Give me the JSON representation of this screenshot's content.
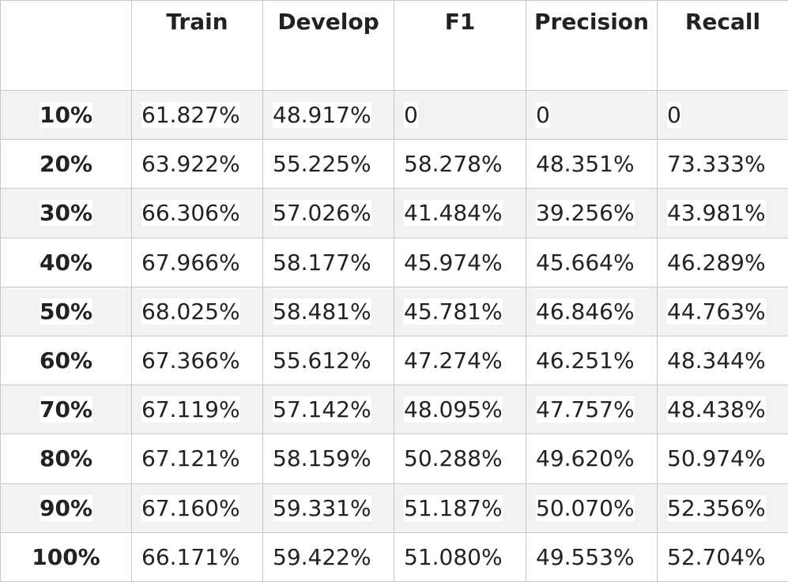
{
  "table": {
    "headers": [
      "",
      "Train",
      "Develop",
      "F1",
      "Precision",
      "Recall"
    ],
    "rows": [
      {
        "label": "10%",
        "values": [
          "61.827%",
          "48.917%",
          "0",
          "0",
          "0"
        ]
      },
      {
        "label": "20%",
        "values": [
          "63.922%",
          "55.225%",
          "58.278%",
          "48.351%",
          "73.333%"
        ]
      },
      {
        "label": "30%",
        "values": [
          "66.306%",
          "57.026%",
          "41.484%",
          "39.256%",
          "43.981%"
        ]
      },
      {
        "label": "40%",
        "values": [
          "67.966%",
          "58.177%",
          "45.974%",
          "45.664%",
          "46.289%"
        ]
      },
      {
        "label": "50%",
        "values": [
          "68.025%",
          "58.481%",
          "45.781%",
          "46.846%",
          "44.763%"
        ]
      },
      {
        "label": "60%",
        "values": [
          "67.366%",
          "55.612%",
          "47.274%",
          "46.251%",
          "48.344%"
        ]
      },
      {
        "label": "70%",
        "values": [
          "67.119%",
          "57.142%",
          "48.095%",
          "47.757%",
          "48.438%"
        ]
      },
      {
        "label": "80%",
        "values": [
          "67.121%",
          "58.159%",
          "50.288%",
          "49.620%",
          "50.974%"
        ]
      },
      {
        "label": "90%",
        "values": [
          "67.160%",
          "59.331%",
          "51.187%",
          "50.070%",
          "52.356%"
        ]
      },
      {
        "label": "100%",
        "values": [
          "66.171%",
          "59.422%",
          "51.080%",
          "49.553%",
          "52.704%"
        ]
      }
    ]
  }
}
